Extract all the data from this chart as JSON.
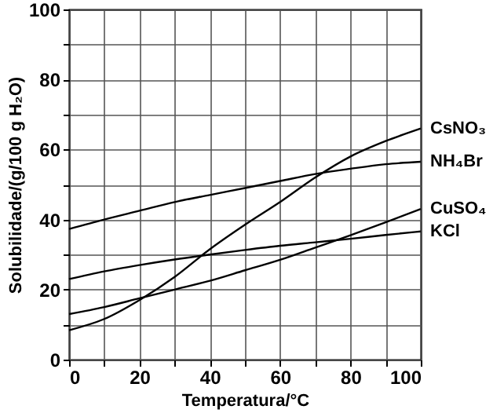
{
  "chart_data": {
    "type": "line",
    "xlabel": "Temperatura/°C",
    "ylabel": "Solubilidade/(g/100 g H₂O)",
    "x": [
      0,
      10,
      20,
      30,
      40,
      50,
      60,
      70,
      80,
      90,
      100
    ],
    "series": [
      {
        "name": "CsNO₃",
        "color": "#000000",
        "values": [
          8.4,
          11.6,
          17,
          23.6,
          31.5,
          38.5,
          45,
          52,
          58,
          62.4,
          66
        ]
      },
      {
        "name": "NH₄Br",
        "color": "#000000",
        "values": [
          37.3,
          40,
          42.5,
          45,
          47,
          49,
          51,
          53,
          54.5,
          55.8,
          56.5
        ]
      },
      {
        "name": "CuSO₄",
        "color": "#000000",
        "values": [
          13,
          15,
          17.5,
          20,
          22.5,
          25.5,
          28.5,
          32,
          35.5,
          39.2,
          43
        ]
      },
      {
        "name": "KCl",
        "color": "#000000",
        "values": [
          23,
          25.2,
          27,
          28.6,
          30,
          31.3,
          32.5,
          33.5,
          34.5,
          35.6,
          36.6
        ]
      }
    ],
    "xlim": [
      0,
      100
    ],
    "ylim": [
      0,
      100
    ],
    "xticks": [
      0,
      {
        "value": 10,
        "label": null
      },
      20,
      {
        "value": 30,
        "label": null
      },
      40,
      {
        "value": 50,
        "label": null
      },
      60,
      {
        "value": 70,
        "label": null
      },
      80,
      {
        "value": 90,
        "label": null
      },
      100
    ],
    "yticks": [
      0,
      {
        "value": 10,
        "label": null
      },
      20,
      {
        "value": 30,
        "label": null
      },
      40,
      {
        "value": 50,
        "label": null
      },
      60,
      {
        "value": 70,
        "label": null
      },
      80,
      {
        "value": 90,
        "label": null
      },
      100
    ],
    "grid": true,
    "marker": "none",
    "line_style": "solid"
  }
}
